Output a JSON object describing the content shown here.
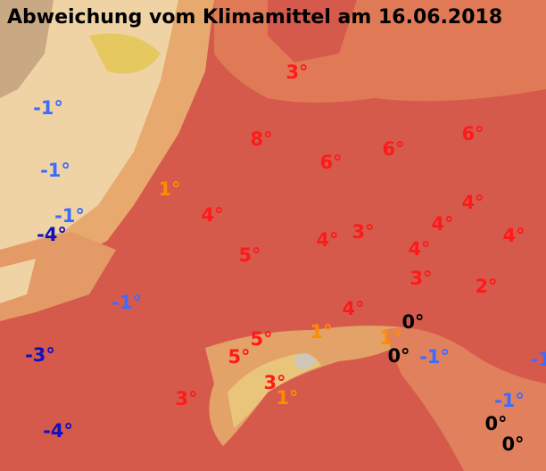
{
  "title": "Abweichung vom Klimamittel am 16.06.2018",
  "labels": [
    {
      "text": "3°",
      "color": "#ff1a1a"
    },
    {
      "text": "-1°",
      "color": "#3b6cff"
    },
    {
      "text": "8°",
      "color": "#ff1a1a"
    },
    {
      "text": "6°",
      "color": "#ff1a1a"
    },
    {
      "text": "6°",
      "color": "#ff1a1a"
    },
    {
      "text": "6°",
      "color": "#ff1a1a"
    },
    {
      "text": "-1°",
      "color": "#3b6cff"
    },
    {
      "text": "1°",
      "color": "#ff8c00"
    },
    {
      "text": "-1°",
      "color": "#3b6cff"
    },
    {
      "text": "-4°",
      "color": "#1010c0"
    },
    {
      "text": "4°",
      "color": "#ff1a1a"
    },
    {
      "text": "4°",
      "color": "#ff1a1a"
    },
    {
      "text": "3°",
      "color": "#ff1a1a"
    },
    {
      "text": "4°",
      "color": "#ff1a1a"
    },
    {
      "text": "4°",
      "color": "#ff1a1a"
    },
    {
      "text": "4°",
      "color": "#ff1a1a"
    },
    {
      "text": "4°",
      "color": "#ff1a1a"
    },
    {
      "text": "5°",
      "color": "#ff1a1a"
    },
    {
      "text": "3°",
      "color": "#ff1a1a"
    },
    {
      "text": "2°",
      "color": "#ff1a1a"
    },
    {
      "text": "-1°",
      "color": "#3b6cff"
    },
    {
      "text": "4°",
      "color": "#ff1a1a"
    },
    {
      "text": "0°",
      "color": "#000000"
    },
    {
      "text": "1°",
      "color": "#ff8c00"
    },
    {
      "text": "1°",
      "color": "#ff8c00"
    },
    {
      "text": "5°",
      "color": "#ff1a1a"
    },
    {
      "text": "-3°",
      "color": "#1010c0"
    },
    {
      "text": "5°",
      "color": "#ff1a1a"
    },
    {
      "text": "0°",
      "color": "#000000"
    },
    {
      "text": "-1°",
      "color": "#3b6cff"
    },
    {
      "text": "-1",
      "color": "#3b6cff"
    },
    {
      "text": "3°",
      "color": "#ff1a1a"
    },
    {
      "text": "1°",
      "color": "#ff8c00"
    },
    {
      "text": "3°",
      "color": "#ff1a1a"
    },
    {
      "text": "-1°",
      "color": "#3b6cff"
    },
    {
      "text": "-4°",
      "color": "#1010c0"
    },
    {
      "text": "0°",
      "color": "#000000"
    },
    {
      "text": "0°",
      "color": "#000000"
    }
  ]
}
